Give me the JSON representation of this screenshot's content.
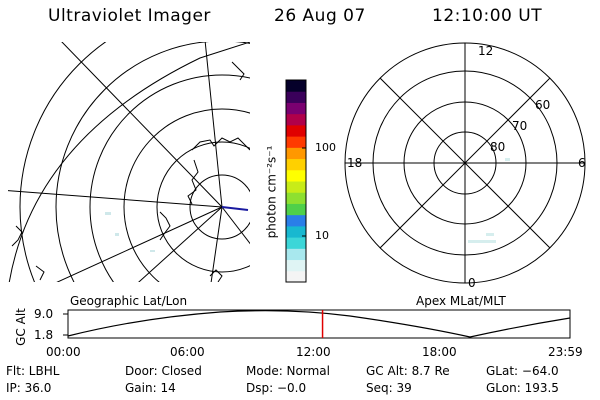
{
  "header": {
    "instrument": "Ultraviolet Imager",
    "date": "26 Aug 07",
    "time": "12:10:00 UT"
  },
  "panels": {
    "left_label": "Geographic Lat/Lon",
    "right_label": "Apex  MLat/MLT"
  },
  "colorbar": {
    "axis_label": "photon cm⁻²s⁻¹",
    "ticks": [
      {
        "label": "100",
        "value": 100
      },
      {
        "label": "10",
        "value": 10
      }
    ],
    "colors": [
      "#f4f4f4",
      "#dff4f4",
      "#a8e8ee",
      "#3cd6d8",
      "#18b8d0",
      "#2a7ee8",
      "#4fd04a",
      "#8ee030",
      "#c8ec18",
      "#ffff00",
      "#ffd000",
      "#ff9800",
      "#ff3a00",
      "#e00000",
      "#b0004a",
      "#7a0070",
      "#3a005a",
      "#05002a"
    ]
  },
  "polar": {
    "mlt_labels": {
      "top": "12",
      "left": "18",
      "right": "6",
      "bottom": "0"
    },
    "mlat_labels": [
      "60",
      "70",
      "80"
    ]
  },
  "altitude_plot": {
    "ylabel": "GC Alt",
    "yticks": [
      "9.0",
      "1.8"
    ],
    "xticks": [
      "00:00",
      "06:00",
      "12:00",
      "18:00",
      "23:59"
    ],
    "current_time_hours": 12.17
  },
  "info": {
    "flt": "Flt: LBHL",
    "door": "Door: Closed",
    "mode": "Mode: Normal",
    "gc_alt": "GC Alt: 8.7 Re",
    "glat": "GLat: −64.0",
    "ip": "IP: 36.0",
    "gain": "Gain: 14",
    "dsp": "Dsp:   −0.0",
    "seq": "Seq: 39",
    "glon": "GLon: 193.5"
  },
  "colors": {
    "current_time_marker": "#e00000",
    "magnetic_pole_line": "#1a1aa0"
  }
}
